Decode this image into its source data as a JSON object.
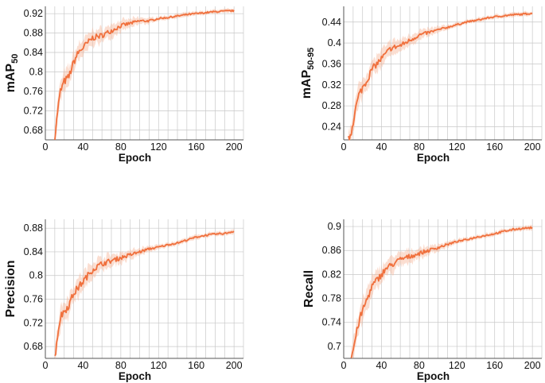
{
  "colors": {
    "line": "#f0703d",
    "band": "#f7b69a",
    "grid": "#c8c8c8",
    "axis": "#555555"
  },
  "chart_data": [
    {
      "type": "line",
      "xlabel": "Epoch",
      "ylabel": "mAP",
      "ylabel_sub": "50",
      "xlim": [
        0,
        210
      ],
      "ylim": [
        0.66,
        0.935
      ],
      "xticks": [
        0,
        40,
        80,
        120,
        160,
        200
      ],
      "yticks": [
        0.68,
        0.72,
        0.76,
        0.8,
        0.84,
        0.88,
        0.92
      ],
      "ytick_labels": [
        "0.68",
        "0.72",
        "0.76",
        "0.8",
        "0.84",
        "0.88",
        "0.92"
      ],
      "grid": true,
      "series": [
        {
          "x": [
            10,
            13,
            16,
            20,
            25,
            30,
            35,
            40,
            45,
            50,
            60,
            70,
            80,
            90,
            100,
            110,
            120,
            130,
            140,
            150,
            160,
            170,
            180,
            190,
            200
          ],
          "y": [
            0.66,
            0.72,
            0.76,
            0.78,
            0.79,
            0.82,
            0.84,
            0.85,
            0.86,
            0.87,
            0.875,
            0.885,
            0.895,
            0.9,
            0.905,
            0.905,
            0.91,
            0.912,
            0.915,
            0.918,
            0.92,
            0.922,
            0.924,
            0.925,
            0.926
          ]
        }
      ]
    },
    {
      "type": "line",
      "xlabel": "Epoch",
      "ylabel": "mAP",
      "ylabel_sub": "50-95",
      "xlim": [
        0,
        210
      ],
      "ylim": [
        0.215,
        0.47
      ],
      "xticks": [
        0,
        40,
        80,
        120,
        160,
        200
      ],
      "yticks": [
        0.24,
        0.28,
        0.32,
        0.36,
        0.4,
        0.44
      ],
      "ytick_labels": [
        "0.24",
        "0.28",
        "0.32",
        "0.36",
        "0.4",
        "0.44"
      ],
      "grid": true,
      "series": [
        {
          "x": [
            5,
            8,
            12,
            16,
            20,
            25,
            30,
            35,
            40,
            45,
            50,
            60,
            70,
            80,
            90,
            100,
            110,
            120,
            130,
            140,
            150,
            160,
            170,
            180,
            190,
            200
          ],
          "y": [
            0.215,
            0.23,
            0.27,
            0.3,
            0.315,
            0.33,
            0.35,
            0.36,
            0.37,
            0.38,
            0.39,
            0.395,
            0.405,
            0.415,
            0.42,
            0.425,
            0.43,
            0.435,
            0.44,
            0.443,
            0.447,
            0.45,
            0.452,
            0.454,
            0.455,
            0.457
          ]
        }
      ]
    },
    {
      "type": "line",
      "xlabel": "Epoch",
      "ylabel": "Precision",
      "ylabel_sub": "",
      "xlim": [
        0,
        210
      ],
      "ylim": [
        0.66,
        0.895
      ],
      "xticks": [
        0,
        40,
        80,
        120,
        160,
        200
      ],
      "yticks": [
        0.68,
        0.72,
        0.76,
        0.8,
        0.84,
        0.88
      ],
      "ytick_labels": [
        "0.68",
        "0.72",
        "0.76",
        "0.8",
        "0.84",
        "0.88"
      ],
      "grid": true,
      "series": [
        {
          "x": [
            10,
            13,
            16,
            20,
            25,
            30,
            35,
            40,
            45,
            50,
            60,
            70,
            80,
            90,
            100,
            110,
            120,
            130,
            140,
            150,
            160,
            170,
            180,
            190,
            200
          ],
          "y": [
            0.66,
            0.7,
            0.73,
            0.74,
            0.75,
            0.77,
            0.78,
            0.79,
            0.8,
            0.81,
            0.82,
            0.825,
            0.83,
            0.835,
            0.84,
            0.845,
            0.848,
            0.852,
            0.855,
            0.86,
            0.865,
            0.868,
            0.87,
            0.871,
            0.875
          ]
        }
      ]
    },
    {
      "type": "line",
      "xlabel": "Epoch",
      "ylabel": "Recall",
      "ylabel_sub": "",
      "xlim": [
        0,
        210
      ],
      "ylim": [
        0.68,
        0.912
      ],
      "xticks": [
        0,
        40,
        80,
        120,
        160,
        200
      ],
      "yticks": [
        0.7,
        0.74,
        0.78,
        0.82,
        0.86,
        0.9
      ],
      "ytick_labels": [
        "0.7",
        "0.74",
        "0.78",
        "0.82",
        "0.86",
        "0.9"
      ],
      "grid": true,
      "series": [
        {
          "x": [
            8,
            12,
            16,
            20,
            25,
            30,
            35,
            40,
            45,
            50,
            60,
            70,
            80,
            90,
            100,
            110,
            120,
            130,
            140,
            150,
            160,
            170,
            180,
            190,
            200
          ],
          "y": [
            0.68,
            0.71,
            0.74,
            0.76,
            0.78,
            0.8,
            0.81,
            0.82,
            0.83,
            0.835,
            0.845,
            0.85,
            0.855,
            0.86,
            0.865,
            0.87,
            0.875,
            0.878,
            0.882,
            0.885,
            0.888,
            0.892,
            0.895,
            0.897,
            0.898
          ]
        }
      ]
    }
  ]
}
